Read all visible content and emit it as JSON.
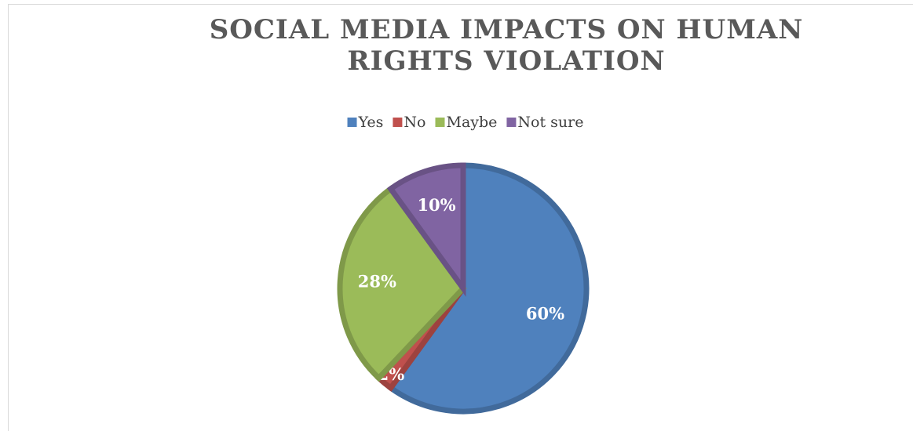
{
  "chart_data": {
    "type": "pie",
    "title": "SOCIAL MEDIA IMPACTS ON HUMAN RIGHTS VIOLATION",
    "categories": [
      "Yes",
      "No",
      "Maybe",
      "Not sure"
    ],
    "values": [
      60,
      2,
      28,
      10
    ],
    "value_labels": [
      "60%",
      "2%",
      "28%",
      "10%"
    ],
    "colors": [
      "#4f81bd",
      "#c0504d",
      "#9bbb59",
      "#8064a2"
    ],
    "legend": "top"
  }
}
